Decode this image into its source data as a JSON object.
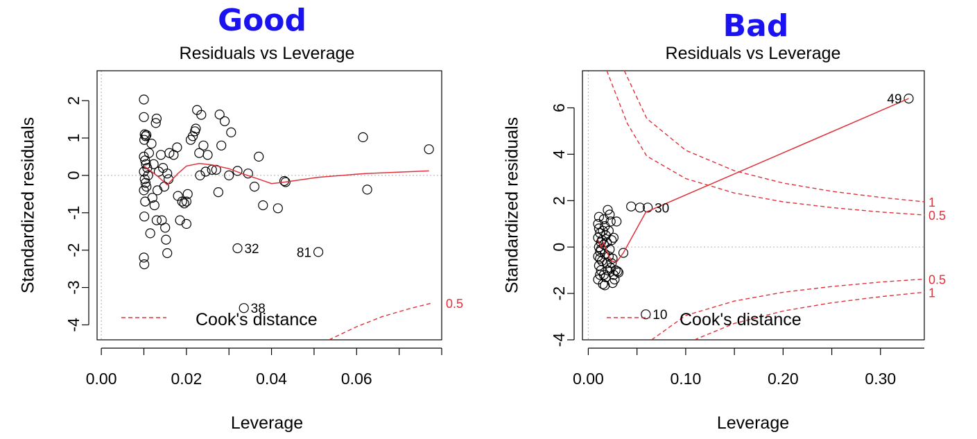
{
  "chart_data": [
    {
      "type": "scatter",
      "heading": "Good",
      "title": "Residuals vs Leverage",
      "xlabel": "Leverage",
      "ylabel": "Standardized residuals",
      "xlim": [
        -0.001,
        0.08
      ],
      "ylim": [
        -4.4,
        2.8
      ],
      "xticks": [
        0.0,
        0.02,
        0.04,
        0.06
      ],
      "xtick_labels": [
        "0.00",
        "0.02",
        "0.04",
        "0.06"
      ],
      "yticks": [
        -4,
        -3,
        -2,
        -1,
        0,
        1,
        2
      ],
      "ytick_labels": [
        "-4",
        "-3",
        "-2",
        "-1",
        "0",
        "1",
        "2"
      ],
      "colors": {
        "points": "#000000",
        "smooth": "#e0303a",
        "cook": "#e0303a",
        "reference": "#bbbbbb",
        "heading": "#1a12f0"
      },
      "points": [
        [
          0.01,
          2.03
        ],
        [
          0.01,
          1.56
        ],
        [
          0.0102,
          1.1
        ],
        [
          0.0104,
          1.05
        ],
        [
          0.0106,
          1.08
        ],
        [
          0.0101,
          0.95
        ],
        [
          0.01,
          0.5
        ],
        [
          0.0103,
          0.4
        ],
        [
          0.0105,
          0.3
        ],
        [
          0.0108,
          0.2
        ],
        [
          0.01,
          0.1
        ],
        [
          0.0102,
          -0.1
        ],
        [
          0.0104,
          -0.2
        ],
        [
          0.0106,
          -0.3
        ],
        [
          0.01,
          -0.4
        ],
        [
          0.0103,
          -0.7
        ],
        [
          0.0101,
          -1.1
        ],
        [
          0.01,
          -2.2
        ],
        [
          0.0101,
          -2.38
        ],
        [
          0.0115,
          -1.55
        ],
        [
          0.0118,
          0.85
        ],
        [
          0.0112,
          0.6
        ],
        [
          0.011,
          0.0
        ],
        [
          0.012,
          -0.6
        ],
        [
          0.0125,
          -0.8
        ],
        [
          0.0123,
          0.3
        ],
        [
          0.0128,
          1.4
        ],
        [
          0.013,
          1.52
        ],
        [
          0.013,
          -1.2
        ],
        [
          0.0132,
          -0.4
        ],
        [
          0.0135,
          0.1
        ],
        [
          0.014,
          0.55
        ],
        [
          0.0142,
          -1.2
        ],
        [
          0.0145,
          0.2
        ],
        [
          0.0148,
          -0.3
        ],
        [
          0.015,
          -1.4
        ],
        [
          0.0152,
          -1.72
        ],
        [
          0.0155,
          -2.08
        ],
        [
          0.0155,
          0.05
        ],
        [
          0.016,
          0.6
        ],
        [
          0.0158,
          -0.1
        ],
        [
          0.017,
          0.55
        ],
        [
          0.0178,
          0.75
        ],
        [
          0.018,
          -0.55
        ],
        [
          0.0185,
          -1.2
        ],
        [
          0.019,
          -0.7
        ],
        [
          0.0195,
          -0.75
        ],
        [
          0.02,
          -0.7
        ],
        [
          0.02,
          -1.3
        ],
        [
          0.0203,
          -0.5
        ],
        [
          0.021,
          0.95
        ],
        [
          0.0215,
          1.05
        ],
        [
          0.022,
          1.18
        ],
        [
          0.0222,
          1.25
        ],
        [
          0.0225,
          1.75
        ],
        [
          0.023,
          0.6
        ],
        [
          0.0232,
          0.0
        ],
        [
          0.0235,
          1.62
        ],
        [
          0.024,
          0.8
        ],
        [
          0.0245,
          0.1
        ],
        [
          0.025,
          0.55
        ],
        [
          0.026,
          0.15
        ],
        [
          0.027,
          0.15
        ],
        [
          0.0275,
          -0.45
        ],
        [
          0.0278,
          1.63
        ],
        [
          0.0282,
          0.8
        ],
        [
          0.029,
          1.45
        ],
        [
          0.03,
          0.0
        ],
        [
          0.0305,
          1.15
        ],
        [
          0.032,
          -1.95
        ],
        [
          0.032,
          0.12
        ],
        [
          0.0335,
          -3.55
        ],
        [
          0.0345,
          0.05
        ],
        [
          0.036,
          -0.3
        ],
        [
          0.037,
          0.5
        ],
        [
          0.038,
          -0.8
        ],
        [
          0.0415,
          -0.88
        ],
        [
          0.043,
          -0.15
        ],
        [
          0.0433,
          -0.18
        ],
        [
          0.051,
          -2.05
        ],
        [
          0.0615,
          1.02
        ],
        [
          0.0625,
          -0.38
        ],
        [
          0.077,
          0.7
        ]
      ],
      "labels": [
        {
          "text": "32",
          "x": 0.032,
          "y": -1.95
        },
        {
          "text": "81",
          "x": 0.051,
          "y": -2.05
        },
        {
          "text": "38",
          "x": 0.0335,
          "y": -3.55
        }
      ],
      "smooth": [
        [
          0.01,
          0.25
        ],
        [
          0.013,
          0.0
        ],
        [
          0.0155,
          -0.25
        ],
        [
          0.018,
          0.05
        ],
        [
          0.02,
          0.25
        ],
        [
          0.023,
          0.32
        ],
        [
          0.026,
          0.28
        ],
        [
          0.03,
          0.18
        ],
        [
          0.033,
          0.05
        ],
        [
          0.037,
          -0.1
        ],
        [
          0.04,
          -0.22
        ],
        [
          0.043,
          -0.18
        ],
        [
          0.051,
          -0.05
        ],
        [
          0.062,
          0.05
        ],
        [
          0.077,
          0.12
        ]
      ],
      "cook_curves": [
        {
          "label": "0.5",
          "points": [
            [
              0.0535,
              -4.4
            ],
            [
              0.06,
              -4.05
            ],
            [
              0.066,
              -3.78
            ],
            [
              0.072,
              -3.58
            ],
            [
              0.0775,
              -3.42
            ]
          ]
        }
      ],
      "cook_labels": [
        {
          "text": "0.5",
          "y": -3.42
        }
      ],
      "legend": "Cook's distance"
    },
    {
      "type": "scatter",
      "heading": "Bad",
      "title": "Residuals vs Leverage",
      "xlabel": "Leverage",
      "ylabel": "Standardized residuals",
      "xlim": [
        -0.006,
        0.345
      ],
      "ylim": [
        -4.0,
        7.6
      ],
      "xticks": [
        0.0,
        0.1,
        0.2,
        0.3
      ],
      "xtick_labels": [
        "0.00",
        "0.10",
        "0.20",
        "0.30"
      ],
      "yticks": [
        -4,
        -2,
        0,
        2,
        4,
        6
      ],
      "ytick_labels": [
        "-4",
        "-2",
        "0",
        "2",
        "4",
        "6"
      ],
      "colors": {
        "points": "#000000",
        "smooth": "#e0303a",
        "cook": "#e0303a",
        "reference": "#bbbbbb",
        "heading": "#1a12f0"
      },
      "points": [
        [
          0.01,
          1.0
        ],
        [
          0.011,
          0.8
        ],
        [
          0.012,
          0.6
        ],
        [
          0.01,
          0.4
        ],
        [
          0.013,
          0.2
        ],
        [
          0.011,
          0.0
        ],
        [
          0.012,
          -0.2
        ],
        [
          0.01,
          -0.4
        ],
        [
          0.014,
          -0.6
        ],
        [
          0.011,
          -0.8
        ],
        [
          0.013,
          -1.0
        ],
        [
          0.012,
          -1.2
        ],
        [
          0.01,
          -1.4
        ],
        [
          0.015,
          -1.6
        ],
        [
          0.016,
          1.2
        ],
        [
          0.017,
          0.9
        ],
        [
          0.018,
          0.5
        ],
        [
          0.016,
          0.1
        ],
        [
          0.017,
          -0.3
        ],
        [
          0.019,
          -0.7
        ],
        [
          0.02,
          -1.0
        ],
        [
          0.018,
          -1.3
        ],
        [
          0.02,
          1.6
        ],
        [
          0.022,
          1.4
        ],
        [
          0.023,
          1.1
        ],
        [
          0.021,
          0.7
        ],
        [
          0.024,
          0.3
        ],
        [
          0.022,
          -0.1
        ],
        [
          0.025,
          -0.5
        ],
        [
          0.023,
          -0.9
        ],
        [
          0.026,
          -1.2
        ],
        [
          0.025,
          -1.55
        ],
        [
          0.027,
          -1.4
        ],
        [
          0.028,
          -1.0
        ],
        [
          0.029,
          1.1
        ],
        [
          0.03,
          -1.05
        ],
        [
          0.031,
          -1.1
        ],
        [
          0.014,
          0.3
        ],
        [
          0.012,
          -0.5
        ],
        [
          0.015,
          0.7
        ],
        [
          0.013,
          -0.1
        ],
        [
          0.016,
          -1.2
        ],
        [
          0.011,
          1.3
        ],
        [
          0.019,
          0.2
        ],
        [
          0.021,
          -0.4
        ],
        [
          0.017,
          -1.65
        ],
        [
          0.024,
          -0.7
        ],
        [
          0.026,
          0.4
        ],
        [
          0.036,
          -0.25
        ],
        [
          0.044,
          1.75
        ],
        [
          0.053,
          1.7
        ],
        [
          0.059,
          -2.9
        ],
        [
          0.061,
          1.7
        ],
        [
          0.329,
          6.4
        ]
      ],
      "labels": [
        {
          "text": "49",
          "x": 0.329,
          "y": 6.4,
          "side": "left"
        },
        {
          "text": "30",
          "x": 0.061,
          "y": 1.7,
          "side": "right"
        },
        {
          "text": "10",
          "x": 0.059,
          "y": -2.9,
          "side": "right"
        }
      ],
      "smooth": [
        [
          0.01,
          0.3
        ],
        [
          0.013,
          0.0
        ],
        [
          0.016,
          0.2
        ],
        [
          0.02,
          -0.3
        ],
        [
          0.024,
          -0.6
        ],
        [
          0.029,
          -0.65
        ],
        [
          0.036,
          -0.25
        ],
        [
          0.059,
          1.5
        ],
        [
          0.329,
          6.4
        ]
      ],
      "cook_curves": [
        {
          "label": "1",
          "points": [
            [
              0.037,
              7.6
            ],
            [
              0.06,
              5.54
            ],
            [
              0.1,
              4.17
            ],
            [
              0.15,
              3.29
            ],
            [
              0.2,
              2.76
            ],
            [
              0.25,
              2.4
            ],
            [
              0.3,
              2.14
            ],
            [
              0.345,
              1.95
            ]
          ]
        },
        {
          "label": "0.5",
          "points": [
            [
              0.019,
              7.6
            ],
            [
              0.04,
              5.33
            ],
            [
              0.06,
              3.92
            ],
            [
              0.1,
              2.95
            ],
            [
              0.15,
              2.33
            ],
            [
              0.2,
              1.95
            ],
            [
              0.25,
              1.7
            ],
            [
              0.3,
              1.51
            ],
            [
              0.345,
              1.38
            ]
          ]
        },
        {
          "label": "0.5",
          "points": [
            [
              0.065,
              -4.0
            ],
            [
              0.1,
              -2.95
            ],
            [
              0.15,
              -2.33
            ],
            [
              0.2,
              -1.95
            ],
            [
              0.25,
              -1.7
            ],
            [
              0.3,
              -1.51
            ],
            [
              0.345,
              -1.38
            ]
          ]
        },
        {
          "label": "1",
          "points": [
            [
              0.109,
              -4.0
            ],
            [
              0.15,
              -3.29
            ],
            [
              0.2,
              -2.76
            ],
            [
              0.25,
              -2.4
            ],
            [
              0.3,
              -2.14
            ],
            [
              0.345,
              -1.95
            ]
          ]
        }
      ],
      "cook_labels": [
        {
          "text": "1",
          "y": 1.95
        },
        {
          "text": "0.5",
          "y": 1.38
        },
        {
          "text": "0.5",
          "y": -1.38
        },
        {
          "text": "1",
          "y": -1.95
        }
      ],
      "legend": "Cook's distance"
    }
  ]
}
